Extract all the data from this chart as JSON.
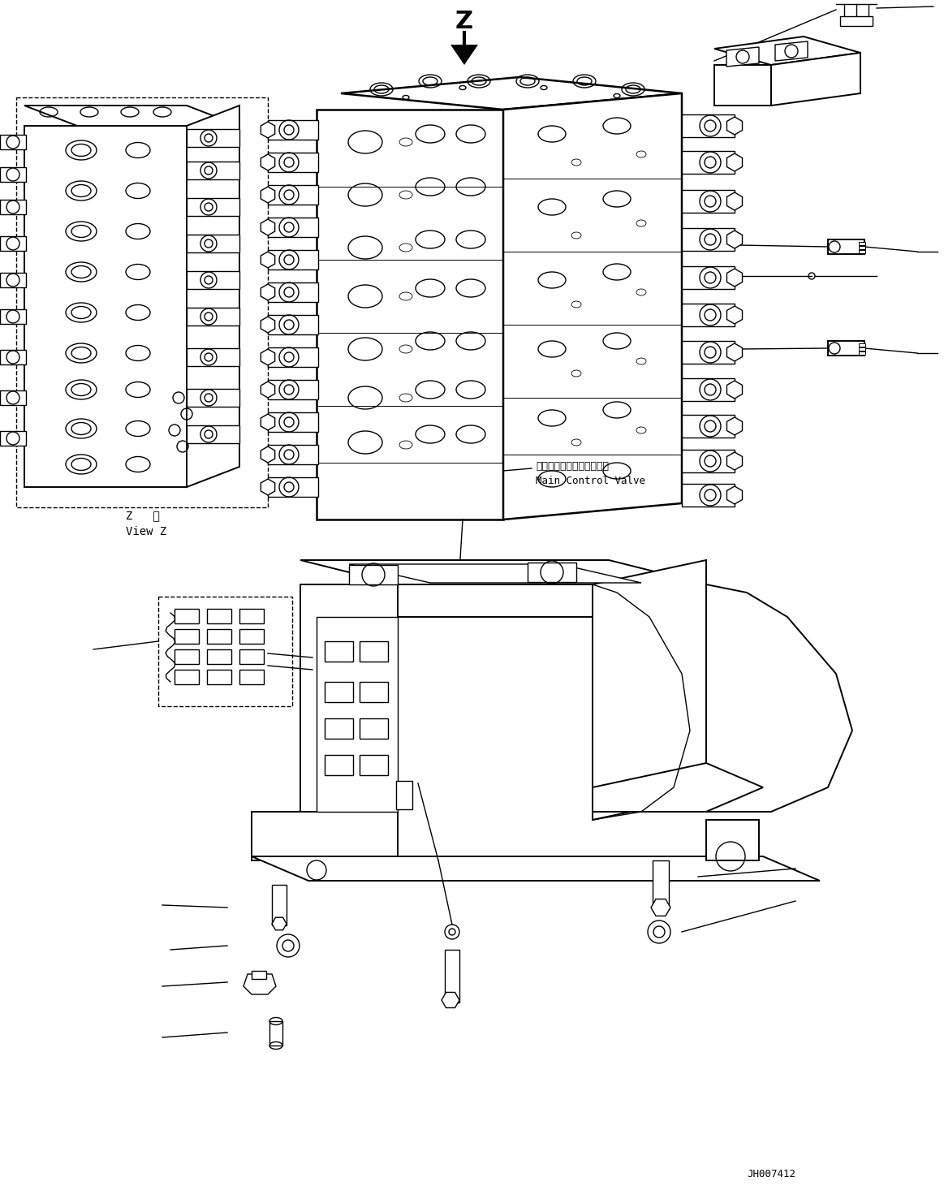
{
  "bg_color": "#ffffff",
  "line_color": "#000000",
  "fig_width": 11.63,
  "fig_height": 14.66,
  "dpi": 100,
  "label_z": "Z",
  "label_view_z_jp": "Z   視",
  "label_view_z_en": "View Z",
  "label_main_valve_jp": "メインコントロールバルブ",
  "label_main_valve_en": "Main Control Valve",
  "label_code": "JH007412"
}
